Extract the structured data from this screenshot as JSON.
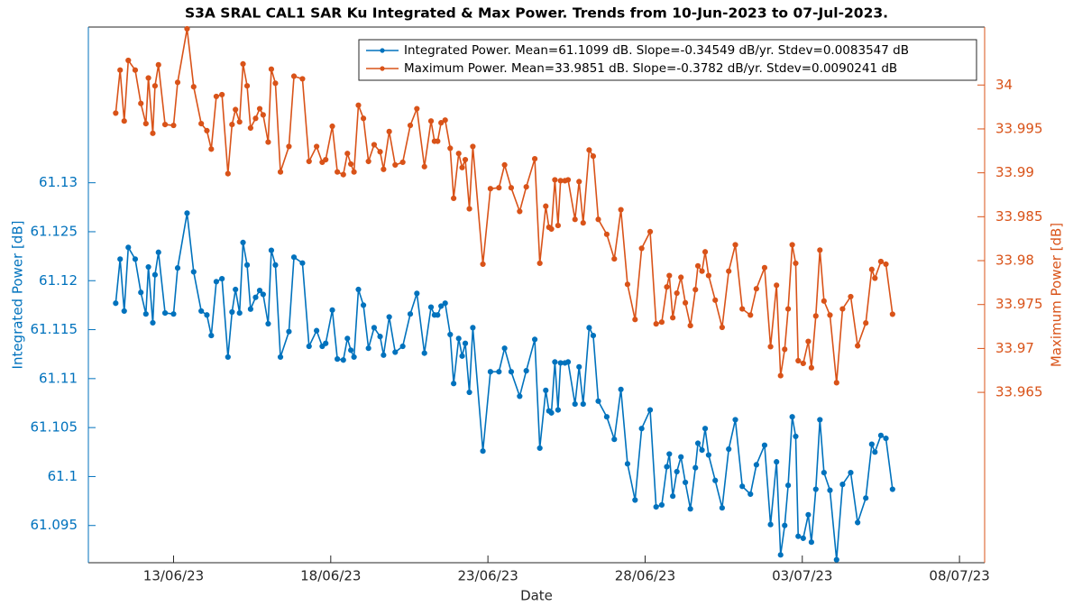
{
  "chart_data": {
    "type": "line",
    "title": "S3A SRAL CAL1 SAR Ku Integrated & Max Power. Trends from 10-Jun-2023 to 07-Jul-2023.",
    "xlabel": "Date",
    "ylabel": "Integrated Power [dB]",
    "y2label": "Maximum Power [dB]",
    "legend": "northeast",
    "grid": false,
    "xlim": [
      10.29,
      38.8
    ],
    "xticks": [
      {
        "value": 13,
        "label": "13/06/23"
      },
      {
        "value": 18,
        "label": "18/06/23"
      },
      {
        "value": 23,
        "label": "23/06/23"
      },
      {
        "value": 28,
        "label": "28/06/23"
      },
      {
        "value": 33,
        "label": "03/07/23"
      },
      {
        "value": 38,
        "label": "08/07/23"
      }
    ],
    "ylim": [
      61.0912,
      61.1459
    ],
    "yticks": [
      61.095,
      61.1,
      61.105,
      61.11,
      61.115,
      61.12,
      61.125,
      61.13
    ],
    "y2lim": [
      33.9456,
      34.0066
    ],
    "y2ticks": [
      33.965,
      33.97,
      33.975,
      33.98,
      33.985,
      33.99,
      33.995,
      34
    ],
    "x": [
      11.16,
      11.3,
      11.43,
      11.56,
      11.78,
      11.96,
      12.12,
      12.2,
      12.34,
      12.41,
      12.52,
      12.73,
      13.0,
      13.13,
      13.43,
      13.64,
      13.88,
      14.06,
      14.2,
      14.36,
      14.54,
      14.73,
      14.86,
      14.97,
      15.1,
      15.21,
      15.34,
      15.45,
      15.61,
      15.74,
      15.85,
      16.01,
      16.11,
      16.24,
      16.4,
      16.67,
      16.83,
      17.1,
      17.31,
      17.55,
      17.73,
      17.84,
      18.05,
      18.21,
      18.4,
      18.53,
      18.64,
      18.74,
      18.88,
      19.04,
      19.2,
      19.38,
      19.57,
      19.68,
      19.86,
      20.05,
      20.29,
      20.53,
      20.74,
      20.98,
      21.19,
      21.3,
      21.4,
      21.51,
      21.64,
      21.8,
      21.91,
      22.07,
      22.18,
      22.28,
      22.41,
      22.52,
      22.84,
      23.08,
      23.35,
      23.53,
      23.74,
      24.01,
      24.22,
      24.49,
      24.65,
      24.84,
      24.94,
      25.02,
      25.13,
      25.23,
      25.31,
      25.45,
      25.55,
      25.77,
      25.9,
      26.03,
      26.22,
      26.35,
      26.51,
      26.78,
      27.02,
      27.23,
      27.44,
      27.68,
      27.89,
      28.16,
      28.35,
      28.53,
      28.69,
      28.77,
      28.88,
      29.01,
      29.14,
      29.28,
      29.44,
      29.6,
      29.68,
      29.81,
      29.91,
      30.02,
      30.23,
      30.45,
      30.66,
      30.87,
      31.09,
      31.35,
      31.54,
      31.8,
      31.99,
      32.18,
      32.31,
      32.44,
      32.55,
      32.68,
      32.79,
      32.87,
      33.03,
      33.19,
      33.29,
      33.43,
      33.56,
      33.69,
      33.88,
      34.09,
      34.28,
      34.54,
      34.76,
      35.02,
      35.21,
      35.31,
      35.5,
      35.66,
      35.87
    ],
    "series": [
      {
        "name": "Integrated Power. Mean=61.1099 dB. Slope=-0.34549 dB/yr. Stdev=0.0083547 dB",
        "color": "#0072BD",
        "axis": "y",
        "values": [
          61.1177,
          61.1222,
          61.1169,
          61.1234,
          61.1222,
          61.1188,
          61.1166,
          61.1214,
          61.1157,
          61.1206,
          61.1229,
          61.1167,
          61.1166,
          61.1213,
          61.1269,
          61.1209,
          61.1169,
          61.1165,
          61.1144,
          61.1199,
          61.1202,
          61.1122,
          61.1168,
          61.1191,
          61.1167,
          61.1239,
          61.1216,
          61.1171,
          61.1183,
          61.119,
          61.1186,
          61.1156,
          61.1231,
          61.1216,
          61.1122,
          61.1148,
          61.1224,
          61.1218,
          61.1133,
          61.1149,
          61.1133,
          61.1136,
          61.117,
          61.112,
          61.1119,
          61.1141,
          61.1129,
          61.1122,
          61.1191,
          61.1175,
          61.1131,
          61.1152,
          61.1143,
          61.1124,
          61.1163,
          61.1127,
          61.1133,
          61.1166,
          61.1187,
          61.1126,
          61.1173,
          61.1165,
          61.1165,
          61.1174,
          61.1177,
          61.1145,
          61.1095,
          61.1141,
          61.1123,
          61.1136,
          61.1086,
          61.1152,
          61.1026,
          61.1107,
          61.1107,
          61.1131,
          61.1107,
          61.1082,
          61.1108,
          61.114,
          61.1029,
          61.1088,
          61.1067,
          61.1065,
          61.1117,
          61.1068,
          61.1116,
          61.1116,
          61.1117,
          61.1074,
          61.1112,
          61.1074,
          61.1152,
          61.1144,
          61.1077,
          61.1061,
          61.1038,
          61.1089,
          61.1013,
          61.0976,
          61.1049,
          61.1068,
          61.0969,
          61.0971,
          61.101,
          61.1023,
          61.098,
          61.1005,
          61.102,
          61.0994,
          61.0967,
          61.1009,
          61.1034,
          61.1027,
          61.1049,
          61.1022,
          61.0996,
          61.0968,
          61.1028,
          61.1058,
          61.099,
          61.0982,
          61.1012,
          61.1032,
          61.0951,
          61.1015,
          61.092,
          61.095,
          61.0991,
          61.1061,
          61.1041,
          61.0939,
          61.0937,
          61.0961,
          61.0933,
          61.0987,
          61.1058,
          61.1004,
          61.0986,
          61.0915,
          61.0992,
          61.1004,
          61.0953,
          61.0978,
          61.1033,
          61.1025,
          61.1042,
          61.1039,
          61.0987
        ]
      },
      {
        "name": "Maximum Power. Mean=33.9851 dB. Slope=-0.3782 dB/yr. Stdev=0.0090241 dB",
        "color": "#D95319",
        "axis": "y2",
        "values": [
          33.9968,
          34.0017,
          33.9959,
          34.0028,
          34.0017,
          33.9979,
          33.9956,
          34.0008,
          33.9945,
          33.9999,
          34.0023,
          33.9955,
          33.9954,
          34.0003,
          34.0064,
          33.9998,
          33.9956,
          33.9948,
          33.9927,
          33.9987,
          33.9989,
          33.9899,
          33.9955,
          33.9972,
          33.9958,
          34.0024,
          33.9999,
          33.9951,
          33.9962,
          33.9973,
          33.9966,
          33.9935,
          34.0018,
          34.0002,
          33.9901,
          33.993,
          34.001,
          34.0007,
          33.9913,
          33.993,
          33.9912,
          33.9915,
          33.9953,
          33.9901,
          33.9898,
          33.9922,
          33.991,
          33.9901,
          33.9977,
          33.9962,
          33.9913,
          33.9932,
          33.9924,
          33.9904,
          33.9947,
          33.9909,
          33.9912,
          33.9954,
          33.9973,
          33.9907,
          33.9959,
          33.9936,
          33.9936,
          33.9957,
          33.996,
          33.9928,
          33.9871,
          33.9922,
          33.9906,
          33.9915,
          33.9859,
          33.993,
          33.9796,
          33.9882,
          33.9883,
          33.9909,
          33.9883,
          33.9856,
          33.9884,
          33.9916,
          33.9797,
          33.9862,
          33.9838,
          33.9836,
          33.9892,
          33.984,
          33.9891,
          33.9891,
          33.9892,
          33.9847,
          33.989,
          33.9843,
          33.9926,
          33.9919,
          33.9847,
          33.983,
          33.9802,
          33.9858,
          33.9773,
          33.9733,
          33.9814,
          33.9833,
          33.9728,
          33.973,
          33.977,
          33.9783,
          33.9735,
          33.9763,
          33.9781,
          33.9752,
          33.9726,
          33.9767,
          33.9794,
          33.9788,
          33.981,
          33.9783,
          33.9755,
          33.9724,
          33.9788,
          33.9818,
          33.9745,
          33.9738,
          33.9768,
          33.9792,
          33.9702,
          33.9772,
          33.9669,
          33.9699,
          33.9745,
          33.9818,
          33.9797,
          33.9686,
          33.9683,
          33.9708,
          33.9678,
          33.9737,
          33.9812,
          33.9754,
          33.9738,
          33.9661,
          33.9745,
          33.9759,
          33.9703,
          33.9729,
          33.979,
          33.978,
          33.9799,
          33.9796,
          33.9739
        ]
      }
    ]
  }
}
